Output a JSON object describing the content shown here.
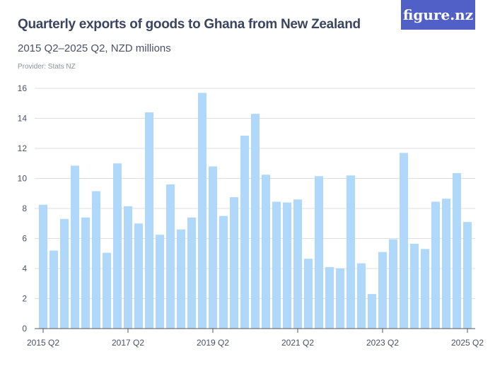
{
  "header": {
    "title": "Quarterly exports of goods to Ghana from New Zealand",
    "subtitle": "2015 Q2–2025 Q2, NZD millions",
    "provider": "Provider: Stats NZ",
    "logo": "figure.nz"
  },
  "colors": {
    "bar": "#afd8fb",
    "grid": "#dddddd",
    "axis": "#555555",
    "logo_bg": "#5060c6"
  },
  "chart_data": {
    "type": "bar",
    "title": "Quarterly exports of goods to Ghana from New Zealand",
    "subtitle": "2015 Q2–2025 Q2, NZD millions",
    "ylim": [
      0,
      16
    ],
    "yticks": [
      0,
      2,
      4,
      6,
      8,
      10,
      12,
      14,
      16
    ],
    "grid": true,
    "xtick_labels": [
      "2015 Q2",
      "2017 Q2",
      "2019 Q2",
      "2021 Q2",
      "2023 Q2",
      "2025 Q2"
    ],
    "categories": [
      "2015 Q2",
      "2015 Q3",
      "2015 Q4",
      "2016 Q1",
      "2016 Q2",
      "2016 Q3",
      "2016 Q4",
      "2017 Q1",
      "2017 Q2",
      "2017 Q3",
      "2017 Q4",
      "2018 Q1",
      "2018 Q2",
      "2018 Q3",
      "2018 Q4",
      "2019 Q1",
      "2019 Q2",
      "2019 Q3",
      "2019 Q4",
      "2020 Q1",
      "2020 Q2",
      "2020 Q3",
      "2020 Q4",
      "2021 Q1",
      "2021 Q2",
      "2021 Q3",
      "2021 Q4",
      "2022 Q1",
      "2022 Q2",
      "2022 Q3",
      "2022 Q4",
      "2023 Q1",
      "2023 Q2",
      "2023 Q3",
      "2023 Q4",
      "2024 Q1",
      "2024 Q2",
      "2024 Q3",
      "2024 Q4",
      "2025 Q1",
      "2025 Q2"
    ],
    "values": [
      8.25,
      5.2,
      7.3,
      10.85,
      7.4,
      9.15,
      5.05,
      11.0,
      8.15,
      7.0,
      14.4,
      6.25,
      9.6,
      6.6,
      7.4,
      15.7,
      10.8,
      7.5,
      8.75,
      12.85,
      14.3,
      10.25,
      8.45,
      8.4,
      8.6,
      4.65,
      10.15,
      4.1,
      4.0,
      10.2,
      4.35,
      2.3,
      5.1,
      5.95,
      11.7,
      5.65,
      5.3,
      8.45,
      8.65,
      10.35,
      7.1
    ]
  }
}
